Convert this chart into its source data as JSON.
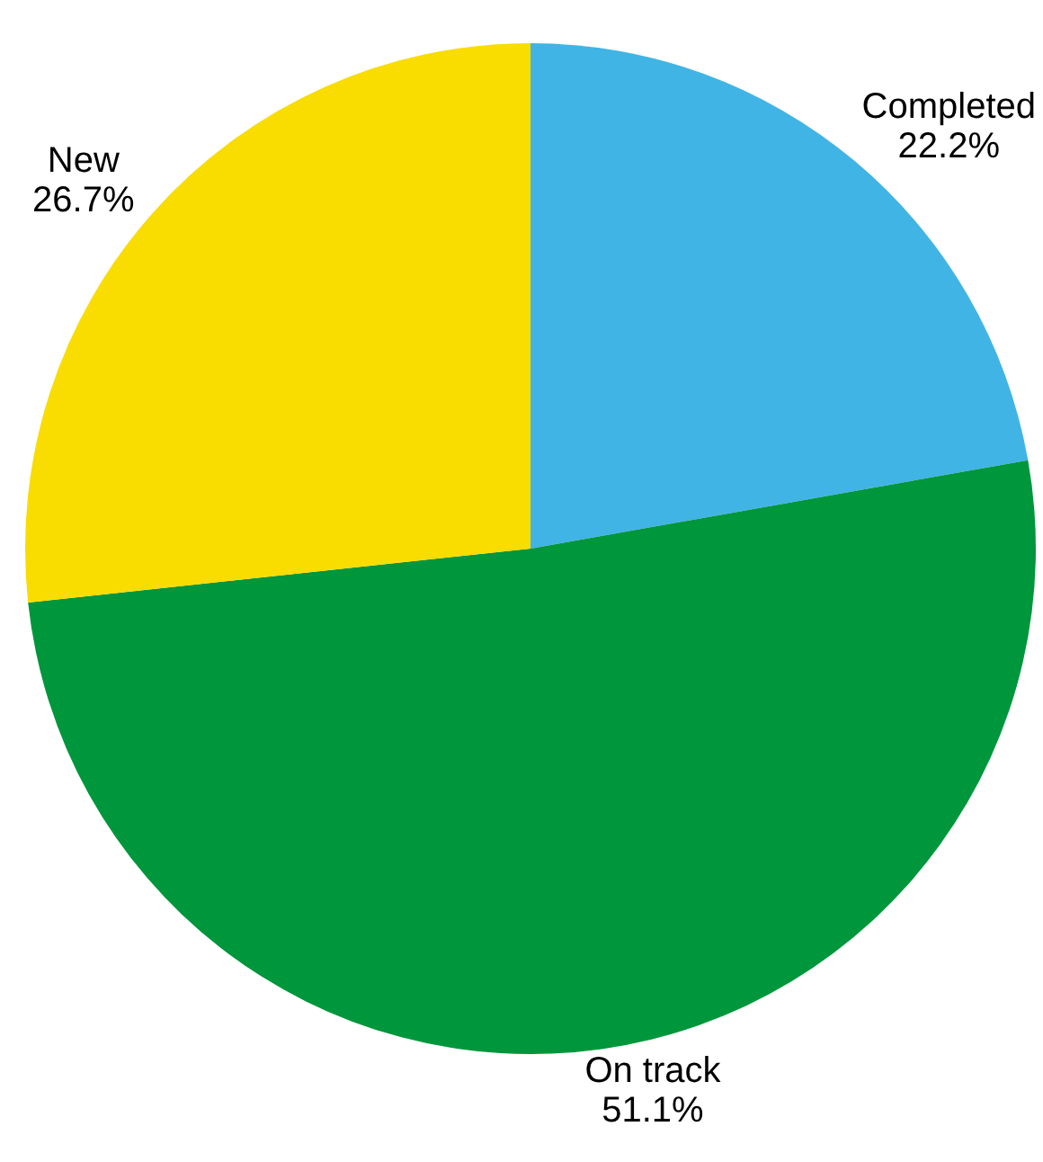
{
  "chart_data": {
    "type": "pie",
    "categories": [
      "Completed",
      "On track",
      "New"
    ],
    "values": [
      22.2,
      51.1,
      26.7
    ],
    "colors": [
      "#41b4e6",
      "#00963c",
      "#f9dc00"
    ],
    "value_labels": [
      "22.2%",
      "51.1%",
      "26.7%"
    ],
    "legend": false
  }
}
